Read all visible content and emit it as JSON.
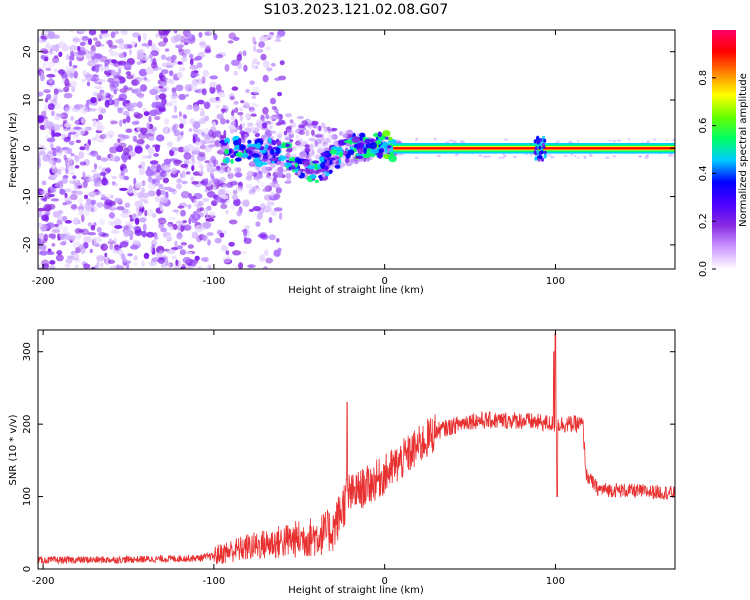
{
  "figure": {
    "title": "S103.2023.121.02.08.G07"
  },
  "chart_data": [
    {
      "type": "heatmap",
      "xlabel": "Height of straight line (km)",
      "ylabel": "Frequency (Hz)",
      "xlim": [
        -203,
        170
      ],
      "ylim": [
        -25,
        24.5
      ],
      "xticks": [
        -200,
        -100,
        0,
        100
      ],
      "yticks": [
        -20,
        -10,
        0,
        10,
        20
      ],
      "colorbar": {
        "label": "Normalized spectral amplitude",
        "range": [
          0,
          1
        ],
        "ticks": [
          0.0,
          0.2,
          0.4,
          0.6,
          0.8
        ],
        "tick_labels": [
          "0.0",
          "0.2",
          "0.4",
          "0.6",
          "0.8"
        ],
        "colormap": [
          "#ffffff",
          "#cc99ff",
          "#8a2be2",
          "#4b00ff",
          "#0000ff",
          "#00ccff",
          "#00ff66",
          "#66ff00",
          "#ffff00",
          "#ff8800",
          "#ff0000",
          "#ff0066"
        ]
      },
      "signal_path": [
        {
          "x": -95,
          "y": 0.0
        },
        {
          "x": -80,
          "y": -1.0
        },
        {
          "x": -65,
          "y": -0.5
        },
        {
          "x": -50,
          "y": -3.0
        },
        {
          "x": -40,
          "y": -4.5
        },
        {
          "x": -35,
          "y": -3.5
        },
        {
          "x": -30,
          "y": -2.0
        },
        {
          "x": -20,
          "y": 0.0
        },
        {
          "x": -10,
          "y": 0.5
        },
        {
          "x": 0,
          "y": 0.8
        },
        {
          "x": 5,
          "y": 0.0
        },
        {
          "x": 170,
          "y": 0.0
        }
      ],
      "noise_region": {
        "x_start": -203,
        "x_end": -100,
        "y_range": [
          -25,
          24.5
        ]
      }
    },
    {
      "type": "line",
      "xlabel": "Height of straight line (km)",
      "ylabel": "SNR (10 * v/v)",
      "xlim": [
        -203,
        170
      ],
      "ylim": [
        0,
        330
      ],
      "xticks": [
        -200,
        -100,
        0,
        100
      ],
      "yticks": [
        0,
        100,
        200,
        300
      ],
      "series": [
        {
          "color": "#e83030",
          "envelope": [
            {
              "x": -203,
              "y": 12
            },
            {
              "x": -150,
              "y": 13
            },
            {
              "x": -110,
              "y": 15
            },
            {
              "x": -100,
              "y": 18
            },
            {
              "x": -90,
              "y": 25
            },
            {
              "x": -80,
              "y": 30
            },
            {
              "x": -60,
              "y": 38
            },
            {
              "x": -40,
              "y": 45
            },
            {
              "x": -30,
              "y": 55
            },
            {
              "x": -22,
              "y": 100
            },
            {
              "x": -10,
              "y": 115
            },
            {
              "x": 0,
              "y": 130
            },
            {
              "x": 10,
              "y": 150
            },
            {
              "x": 20,
              "y": 170
            },
            {
              "x": 30,
              "y": 190
            },
            {
              "x": 50,
              "y": 205
            },
            {
              "x": 80,
              "y": 205
            },
            {
              "x": 100,
              "y": 200
            },
            {
              "x": 116,
              "y": 200
            },
            {
              "x": 118,
              "y": 130
            },
            {
              "x": 125,
              "y": 110
            },
            {
              "x": 170,
              "y": 105
            }
          ],
          "spikes": [
            {
              "x": -22,
              "y": 230
            },
            {
              "x": 99,
              "y": 300
            },
            {
              "x": 100,
              "y": 325
            },
            {
              "x": 101,
              "y": 100
            }
          ]
        }
      ]
    }
  ]
}
